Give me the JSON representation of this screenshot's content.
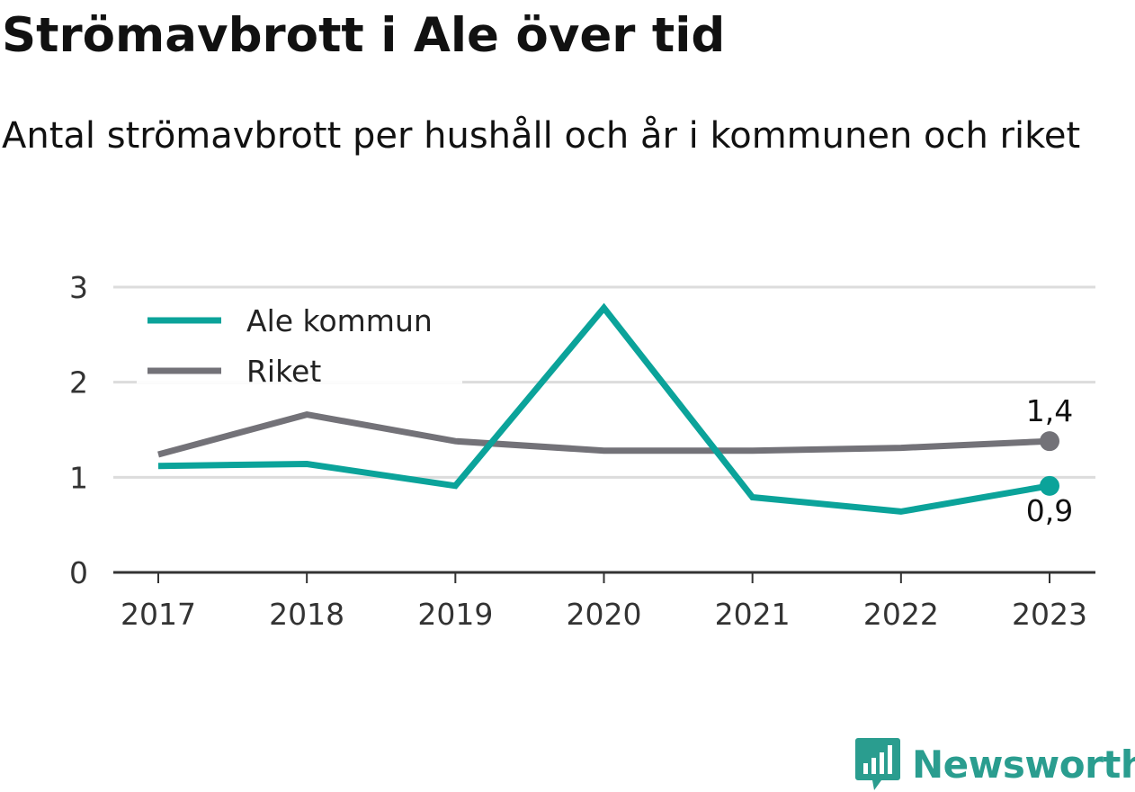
{
  "title": "Strömavbrott i Ale över tid",
  "subtitle": "Antal strömavbrott per hushåll och år i kommunen och riket",
  "colors": {
    "ale": "#0ba39a",
    "riket": "#737278",
    "grid": "#dcdcdc",
    "axis": "#333333",
    "brand": "#2a9d8f"
  },
  "chart_data": {
    "type": "line",
    "x": [
      "2017",
      "2018",
      "2019",
      "2020",
      "2021",
      "2022",
      "2023"
    ],
    "ylim": [
      0,
      3
    ],
    "yticks": [
      "0",
      "1",
      "2",
      "3"
    ],
    "grid": true,
    "legend_position": "top-left",
    "series": [
      {
        "name": "Ale kommun",
        "values": [
          1.12,
          1.14,
          0.91,
          2.78,
          0.79,
          0.64,
          0.91
        ],
        "end_label": "0,9"
      },
      {
        "name": "Riket",
        "values": [
          1.24,
          1.66,
          1.38,
          1.28,
          1.28,
          1.31,
          1.38
        ],
        "end_label": "1,4"
      }
    ]
  },
  "logo": {
    "text": "Newsworthy",
    "icon": "newsworthy-logo-icon"
  }
}
